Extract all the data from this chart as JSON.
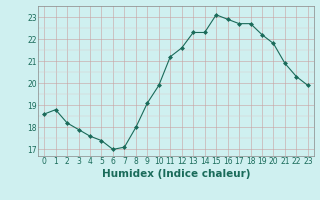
{
  "x": [
    0,
    1,
    2,
    3,
    4,
    5,
    6,
    7,
    8,
    9,
    10,
    11,
    12,
    13,
    14,
    15,
    16,
    17,
    18,
    19,
    20,
    21,
    22,
    23
  ],
  "y": [
    18.6,
    18.8,
    18.2,
    17.9,
    17.6,
    17.4,
    17.0,
    17.1,
    18.0,
    19.1,
    19.9,
    21.2,
    21.6,
    22.3,
    22.3,
    23.1,
    22.9,
    22.7,
    22.7,
    22.2,
    21.8,
    20.9,
    20.3,
    19.9
  ],
  "line_color": "#1a6b5a",
  "marker": "D",
  "marker_size": 2.0,
  "bg_color": "#cff0f0",
  "grid_color_major": "#c8a0a0",
  "grid_color_minor": "#ddc8c8",
  "xlabel": "Humidex (Indice chaleur)",
  "ylim": [
    16.7,
    23.5
  ],
  "xlim": [
    -0.5,
    23.5
  ],
  "yticks": [
    17,
    18,
    19,
    20,
    21,
    22,
    23
  ],
  "xticks": [
    0,
    1,
    2,
    3,
    4,
    5,
    6,
    7,
    8,
    9,
    10,
    11,
    12,
    13,
    14,
    15,
    16,
    17,
    18,
    19,
    20,
    21,
    22,
    23
  ],
  "tick_fontsize": 5.5,
  "xlabel_fontsize": 7.5,
  "linewidth": 0.8
}
